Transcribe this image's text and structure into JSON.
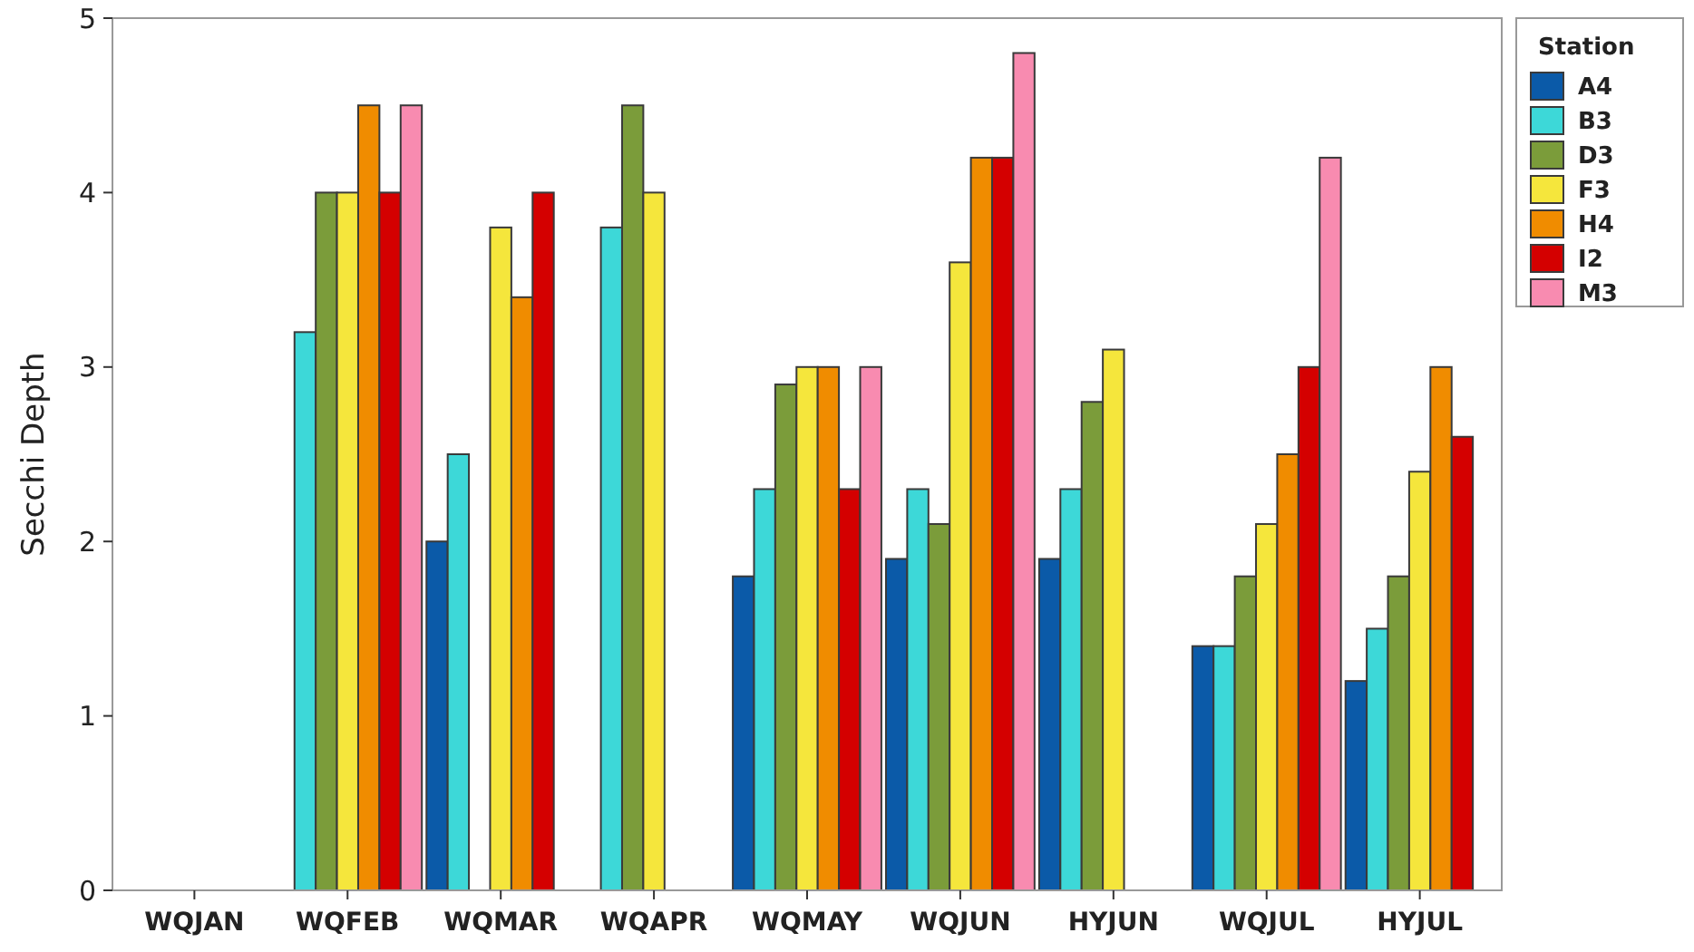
{
  "chart_data": {
    "type": "bar",
    "ylabel": "Secchi Depth",
    "legend_title": "Station",
    "legend": "right",
    "grid": false,
    "categories": [
      "WQJAN",
      "WQFEB",
      "WQMAR",
      "WQAPR",
      "WQMAY",
      "WQJUN",
      "HYJUN",
      "WQJUL",
      "HYJUL"
    ],
    "ylim": [
      0,
      5
    ],
    "yticks": [
      0,
      1,
      2,
      3,
      4,
      5
    ],
    "series": [
      {
        "name": "A4",
        "color": "#0b5aa8",
        "values": [
          null,
          null,
          2.0,
          null,
          1.8,
          1.9,
          1.9,
          1.4,
          1.2
        ]
      },
      {
        "name": "B3",
        "color": "#3dd8d8",
        "values": [
          null,
          3.2,
          2.5,
          3.8,
          2.3,
          2.3,
          2.3,
          1.4,
          1.5
        ]
      },
      {
        "name": "D3",
        "color": "#7b9c3a",
        "values": [
          null,
          4.0,
          null,
          4.5,
          2.9,
          2.1,
          2.8,
          1.8,
          1.8
        ]
      },
      {
        "name": "F3",
        "color": "#f5e63c",
        "values": [
          null,
          4.0,
          3.8,
          4.0,
          3.0,
          3.6,
          3.1,
          2.1,
          2.4
        ]
      },
      {
        "name": "H4",
        "color": "#f08c00",
        "values": [
          null,
          4.5,
          3.4,
          null,
          3.0,
          4.2,
          null,
          2.5,
          3.0
        ]
      },
      {
        "name": "I2",
        "color": "#d40000",
        "values": [
          null,
          4.0,
          4.0,
          null,
          2.3,
          4.2,
          null,
          3.0,
          2.6
        ]
      },
      {
        "name": "M3",
        "color": "#f88bb0",
        "values": [
          null,
          4.5,
          null,
          null,
          3.0,
          4.8,
          null,
          4.2,
          null
        ]
      }
    ]
  }
}
